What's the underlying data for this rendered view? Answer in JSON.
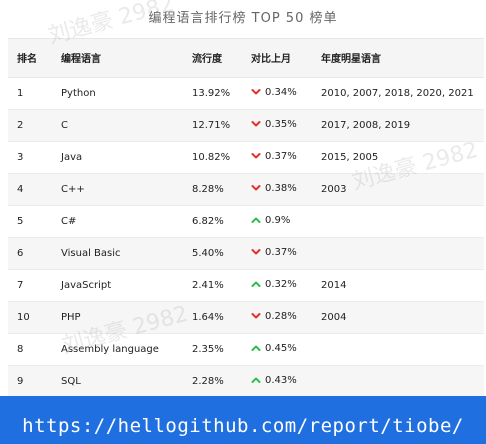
{
  "header": {
    "title": "编程语言排行榜 TOP 50 榜单"
  },
  "table": {
    "columns": [
      "排名",
      "编程语言",
      "流行度",
      "对比上月",
      "年度明星语言"
    ],
    "rows": [
      {
        "rank": "1",
        "language": "Python",
        "popularity": "13.92%",
        "trend": "down",
        "change": "0.34%",
        "star_years": "2010, 2007, 2018, 2020, 2021"
      },
      {
        "rank": "2",
        "language": "C",
        "popularity": "12.71%",
        "trend": "down",
        "change": "0.35%",
        "star_years": "2017, 2008, 2019"
      },
      {
        "rank": "3",
        "language": "Java",
        "popularity": "10.82%",
        "trend": "down",
        "change": "0.37%",
        "star_years": "2015, 2005"
      },
      {
        "rank": "4",
        "language": "C++",
        "popularity": "8.28%",
        "trend": "down",
        "change": "0.38%",
        "star_years": "2003"
      },
      {
        "rank": "5",
        "language": "C#",
        "popularity": "6.82%",
        "trend": "up",
        "change": "0.9%",
        "star_years": ""
      },
      {
        "rank": "6",
        "language": "Visual Basic",
        "popularity": "5.40%",
        "trend": "down",
        "change": "0.37%",
        "star_years": ""
      },
      {
        "rank": "7",
        "language": "JavaScript",
        "popularity": "2.41%",
        "trend": "up",
        "change": "0.32%",
        "star_years": "2014"
      },
      {
        "rank": "10",
        "language": "PHP",
        "popularity": "1.64%",
        "trend": "down",
        "change": "0.28%",
        "star_years": "2004"
      },
      {
        "rank": "8",
        "language": "Assembly language",
        "popularity": "2.35%",
        "trend": "up",
        "change": "0.45%",
        "star_years": ""
      },
      {
        "rank": "9",
        "language": "SQL",
        "popularity": "2.28%",
        "trend": "up",
        "change": "0.43%",
        "star_years": ""
      }
    ]
  },
  "watermark": {
    "text": "刘逸豪 2982"
  },
  "footer": {
    "url": "https://hellogithub.com/report/tiobe/"
  },
  "colors": {
    "down": "#e0312b",
    "up": "#2bbf4f",
    "banner": "#1f6fe0"
  },
  "icons": {
    "down": "chevron-down-icon",
    "up": "chevron-up-icon"
  }
}
